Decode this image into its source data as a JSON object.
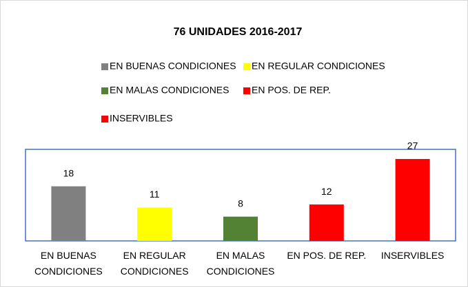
{
  "chart_data": {
    "type": "bar",
    "title": "76 UNIDADES 2016-2017",
    "categories": [
      "EN BUENAS CONDICIONES",
      "EN REGULAR CONDICIONES",
      "EN MALAS CONDICIONES",
      "EN POS. DE REP.",
      "INSERVIBLES"
    ],
    "values": [
      18,
      11,
      8,
      12,
      27
    ],
    "colors": [
      "#808080",
      "#ffff00",
      "#548235",
      "#ff0000",
      "#ff0000"
    ]
  }
}
